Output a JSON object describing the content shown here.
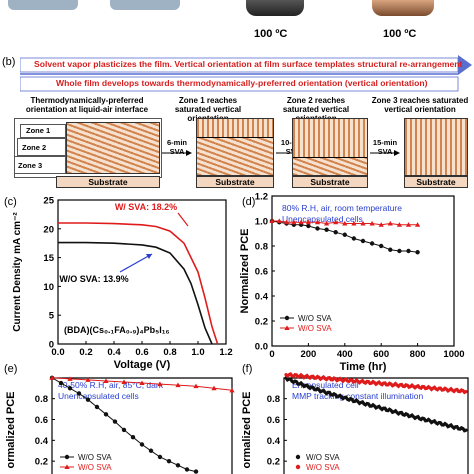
{
  "top": {
    "temp_left": "100 ºC",
    "temp_right": "100 ºC"
  },
  "panel_b": {
    "label": "(b)",
    "banner_1": "Solvent vapor plasticizes the film. Vertical orientation at film surface templates structural re-arrangement",
    "banner_2": "Whole film develops towards thermodynamically-preferred orientation (vertical orientation)",
    "stage_1_caption": "Thermodynamically-preferred orientation at liquid-air interface",
    "stage_2_caption": "Zone 1 reaches saturated vertical orientation",
    "stage_3_caption": "Zone 2 reaches saturated vertical orientation",
    "stage_4_caption": "Zone 3 reaches saturated vertical orientation",
    "zones": [
      "Zone 1",
      "Zone 2",
      "Zone 3"
    ],
    "substrate": "Substrate",
    "arrow_1": "6-min SVA",
    "arrow_2": "10-min SVA",
    "arrow_3": "15-min SVA"
  },
  "chart_data": [
    {
      "panel": "(c)",
      "type": "line",
      "xlabel": "Voltage (V)",
      "ylabel": "Current Density mA cm⁻²",
      "xlim": [
        0.0,
        1.2
      ],
      "ylim": [
        0,
        25
      ],
      "xticks": [
        "0.0",
        "0.2",
        "0.4",
        "0.6",
        "0.8",
        "1.0",
        "1.2"
      ],
      "yticks": [
        "0",
        "5",
        "10",
        "15",
        "20",
        "25"
      ],
      "composition": "(BDA)(Cs₀.₁FA₀.₉)₄Pb₅I₁₆",
      "series": [
        {
          "name": "W/ SVA: 18.2%",
          "color": "#e01b1b",
          "x": [
            0.0,
            0.2,
            0.4,
            0.6,
            0.7,
            0.8,
            0.9,
            1.0,
            1.05,
            1.1,
            1.14
          ],
          "y": [
            21.0,
            21.0,
            20.9,
            20.7,
            20.4,
            19.6,
            17.5,
            12.5,
            8.0,
            3.0,
            0.0
          ]
        },
        {
          "name": "W/O SVA: 13.9%",
          "color": "#111111",
          "x": [
            0.0,
            0.2,
            0.4,
            0.6,
            0.7,
            0.8,
            0.9,
            0.95,
            1.0,
            1.05,
            1.1
          ],
          "y": [
            17.6,
            17.6,
            17.5,
            17.2,
            16.8,
            15.8,
            13.0,
            10.5,
            6.8,
            2.8,
            0.0
          ]
        }
      ]
    },
    {
      "panel": "(d)",
      "type": "line",
      "xlabel": "Time (hr)",
      "ylabel": "Normalized PCE",
      "xlim": [
        0,
        1000
      ],
      "ylim": [
        0.0,
        1.2
      ],
      "xticks": [
        "0",
        "200",
        "400",
        "600",
        "800",
        "1000"
      ],
      "yticks": [
        "0.0",
        "0.2",
        "0.4",
        "0.6",
        "0.8",
        "1.0",
        "1.2"
      ],
      "annotation_1": "80% R.H, air, room temperature",
      "annotation_2": "Unencapsulated cells",
      "series": [
        {
          "name": "W/O SVA",
          "color": "#111111",
          "x": [
            0,
            40,
            80,
            120,
            160,
            200,
            250,
            300,
            350,
            400,
            450,
            500,
            550,
            600,
            650,
            700,
            750,
            800
          ],
          "y": [
            1.0,
            0.99,
            0.98,
            0.97,
            0.97,
            0.96,
            0.94,
            0.93,
            0.91,
            0.89,
            0.86,
            0.84,
            0.82,
            0.8,
            0.77,
            0.76,
            0.76,
            0.75
          ]
        },
        {
          "name": "W/O SVA",
          "color": "#e01b1b",
          "x": [
            0,
            40,
            80,
            120,
            160,
            200,
            250,
            300,
            350,
            400,
            450,
            500,
            550,
            600,
            650,
            700,
            750,
            800
          ],
          "y": [
            1.0,
            1.0,
            0.99,
            0.99,
            0.99,
            0.99,
            0.99,
            0.98,
            0.99,
            0.98,
            0.98,
            0.98,
            0.98,
            0.97,
            0.98,
            0.97,
            0.97,
            0.97
          ]
        }
      ]
    },
    {
      "panel": "(e)",
      "type": "line",
      "ylabel": "ormalized PCE",
      "ylim": [
        0.0,
        1.2
      ],
      "yticks": [
        "1.0",
        "0.8",
        "0.6",
        "0.4",
        "0.2"
      ],
      "annotation_1": "40-50% R.H, air, 85°C, dark",
      "annotation_2": "Unencapsulated cells",
      "series": [
        {
          "name": "W/O SVA",
          "color": "#111111",
          "x": [
            0,
            1,
            2,
            3,
            4,
            5,
            6,
            7,
            8,
            9,
            10,
            11,
            12,
            13,
            14,
            15,
            16
          ],
          "y": [
            1.0,
            0.95,
            0.9,
            0.85,
            0.79,
            0.72,
            0.65,
            0.58,
            0.5,
            0.43,
            0.36,
            0.3,
            0.24,
            0.2,
            0.16,
            0.12,
            0.1
          ]
        },
        {
          "name": "W/O SVA",
          "color": "#e01b1b",
          "x": [
            0,
            2,
            4,
            6,
            8,
            10,
            12,
            14,
            16,
            18,
            20
          ],
          "y": [
            1.0,
            0.99,
            0.98,
            0.97,
            0.96,
            0.95,
            0.94,
            0.93,
            0.92,
            0.9,
            0.88
          ]
        }
      ]
    },
    {
      "panel": "(f)",
      "type": "scatter",
      "ylabel": "ormalized PCE",
      "ylim": [
        0.0,
        1.2
      ],
      "yticks": [
        "1.0",
        "0.8",
        "0.6",
        "0.4",
        "0.2"
      ],
      "annotation_1": "Encapsulated cell",
      "annotation_2": "MMP tracking constant illumination",
      "series": [
        {
          "name": "W/O SVA",
          "color": "#111111",
          "start": 1.0,
          "end": 0.5
        },
        {
          "name": "W/O SVA",
          "color": "#e01b1b",
          "start": 1.03,
          "end": 0.87
        }
      ]
    }
  ]
}
